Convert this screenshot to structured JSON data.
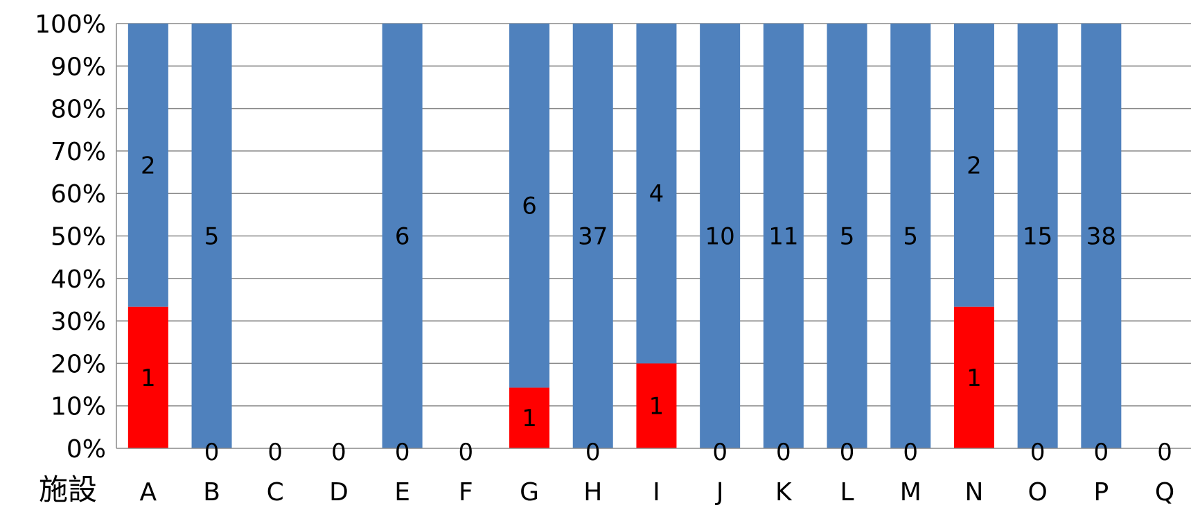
{
  "chart_data": {
    "type": "bar",
    "stacked": true,
    "percent_stacked": true,
    "xlabel": "施設",
    "ylabel": "",
    "ylim": [
      0,
      100
    ],
    "ytick_labels": [
      "0%",
      "10%",
      "20%",
      "30%",
      "40%",
      "50%",
      "60%",
      "70%",
      "80%",
      "90%",
      "100%"
    ],
    "grid": true,
    "legend": "none",
    "categories": [
      "A",
      "B",
      "C",
      "D",
      "E",
      "F",
      "G",
      "H",
      "I",
      "J",
      "K",
      "L",
      "M",
      "N",
      "O",
      "P",
      "Q"
    ],
    "series": [
      {
        "color": "#ff0000",
        "values": [
          1,
          0,
          0,
          0,
          0,
          0,
          1,
          0,
          1,
          0,
          0,
          0,
          0,
          1,
          0,
          0,
          0
        ],
        "data_labels": [
          "1",
          "0",
          "0",
          "0",
          "0",
          "0",
          "1",
          "0",
          "1",
          "0",
          "0",
          "0",
          "0",
          "1",
          "0",
          "0",
          "0"
        ]
      },
      {
        "color": "#4f81bd",
        "values": [
          2,
          5,
          0,
          0,
          6,
          0,
          6,
          37,
          4,
          10,
          11,
          5,
          5,
          2,
          15,
          38,
          0
        ],
        "data_labels": [
          "2",
          "5",
          "",
          "",
          "6",
          "",
          "6",
          "37",
          "4",
          "10",
          "11",
          "5",
          "5",
          "2",
          "15",
          "38",
          ""
        ]
      }
    ]
  }
}
